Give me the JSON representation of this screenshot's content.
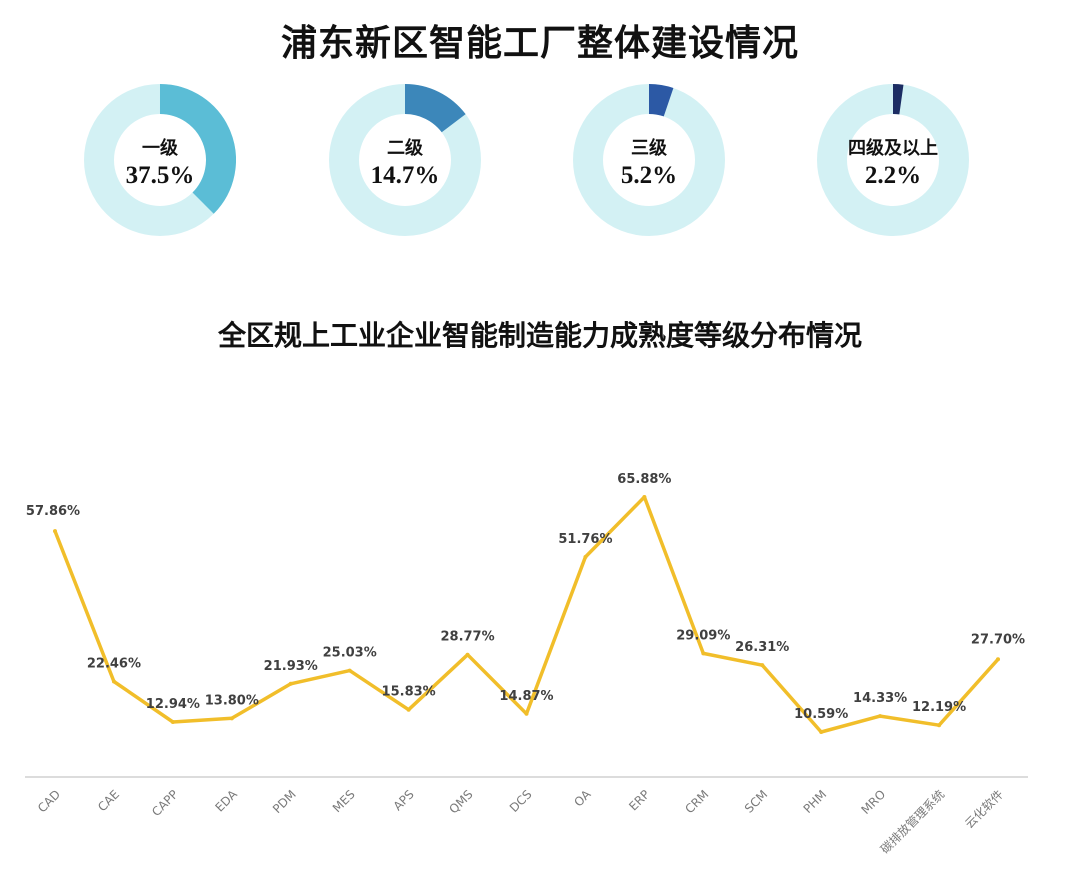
{
  "header": {
    "title": "浦东新区智能工厂整体建设情况"
  },
  "section": {
    "title": "全区规上工业企业智能制造能力成熟度等级分布情况"
  },
  "colors": {
    "ring_bg": "#d3f1f4",
    "line": "#f1be2a",
    "axis": "#d0d0d0",
    "label": "#404040"
  },
  "chart_data": [
    {
      "type": "pie",
      "subtype": "donut",
      "series": [
        {
          "name": "一级",
          "value": 37.5,
          "label": "37.5%",
          "color": "#5bbdd6"
        },
        {
          "name": "二级",
          "value": 14.7,
          "label": "14.7%",
          "color": "#3c87ba"
        },
        {
          "name": "三级",
          "value": 5.2,
          "label": "5.2%",
          "color": "#2c59a5"
        },
        {
          "name": "四级及以上",
          "value": 2.2,
          "label": "2.2%",
          "color": "#1c2d63"
        }
      ]
    },
    {
      "type": "line",
      "title": "",
      "xlabel": "",
      "ylabel": "",
      "categories": [
        "CAD",
        "CAE",
        "CAPP",
        "EDA",
        "PDM",
        "MES",
        "APS",
        "QMS",
        "DCS",
        "OA",
        "ERP",
        "CRM",
        "SCM",
        "PHM",
        "MRO",
        "碳排放管理系统",
        "云化软件"
      ],
      "values": [
        57.86,
        22.46,
        12.94,
        13.8,
        21.93,
        25.03,
        15.83,
        28.77,
        14.87,
        51.76,
        65.88,
        29.09,
        26.31,
        10.59,
        14.33,
        12.19,
        27.7
      ],
      "labels": [
        "57.86%",
        "22.46%",
        "12.94%",
        "13.80%",
        "21.93%",
        "25.03%",
        "15.83%",
        "28.77%",
        "14.87%",
        "51.76%",
        "65.88%",
        "29.09%",
        "26.31%",
        "10.59%",
        "14.33%",
        "12.19%",
        "27.70%"
      ],
      "ylim": [
        0,
        70
      ],
      "grid": false,
      "legend": "none"
    }
  ]
}
